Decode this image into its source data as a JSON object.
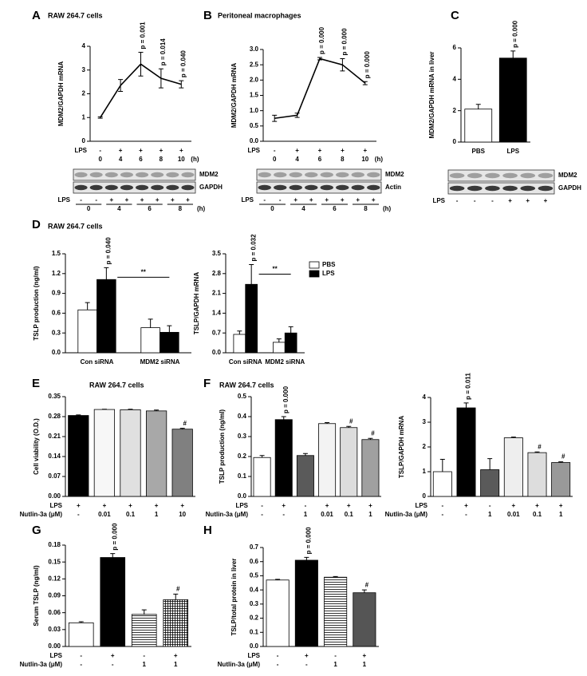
{
  "chart_data": [
    {
      "type": "line",
      "panel": "A",
      "title": "RAW 264.7 cells",
      "ylabel": "MDM2/GAPDH mRNA",
      "categories": [
        "0",
        "4",
        "6",
        "8",
        "10"
      ],
      "xunit": "(h)",
      "series": [
        {
          "color": "#000000",
          "values": [
            1.0,
            2.35,
            3.25,
            2.65,
            2.4
          ],
          "errors": [
            0.03,
            0.25,
            0.5,
            0.4,
            0.15
          ],
          "annotations": [
            null,
            null,
            "p = 0.001",
            "p = 0.014",
            "p = 0.040"
          ]
        }
      ],
      "rows": [
        {
          "label": "LPS",
          "values": [
            "-",
            "+",
            "+",
            "+",
            "+"
          ]
        }
      ],
      "ylim": [
        0,
        4
      ],
      "yticks": [
        0,
        1,
        2,
        3,
        4
      ]
    },
    {
      "type": "line",
      "panel": "B",
      "title": "Peritoneal macrophages",
      "ylabel": "MDM2/GAPDH mRNA",
      "categories": [
        "0",
        "4",
        "6",
        "8",
        "10"
      ],
      "xunit": "(h)",
      "series": [
        {
          "color": "#000000",
          "values": [
            0.75,
            0.85,
            2.7,
            2.5,
            1.9
          ],
          "errors": [
            0.1,
            0.07,
            0.04,
            0.2,
            0.05
          ],
          "annotations": [
            null,
            null,
            "p = 0.000",
            "p = 0.000",
            "p = 0.000"
          ]
        }
      ],
      "rows": [
        {
          "label": "LPS",
          "values": [
            "-",
            "+",
            "+",
            "+",
            "+"
          ]
        }
      ],
      "ylim": [
        0,
        3
      ],
      "yticks": [
        {
          "value": 0,
          "label": "0.0"
        },
        0.5,
        {
          "value": 1,
          "label": "1.0"
        },
        1.5,
        {
          "value": 2,
          "label": "2.0"
        },
        2.5,
        {
          "value": 3,
          "label": "3.0"
        }
      ]
    },
    {
      "type": "bar",
      "panel": "C",
      "ylabel": "MDM2/GAPDH mRNA in liver",
      "categories": [
        "PBS",
        "LPS"
      ],
      "series": [
        {
          "colors": [
            "#ffffff",
            "#000000"
          ],
          "values": [
            2.1,
            5.35
          ],
          "errors": [
            0.3,
            0.45
          ],
          "annotations": [
            null,
            "p = 0.000"
          ]
        }
      ],
      "ylim": [
        0,
        6
      ],
      "yticks": [
        0,
        2,
        4,
        6
      ]
    },
    {
      "type": "bar",
      "panel": "D",
      "title": "RAW 264.7 cells",
      "ylabel": "TSLP production (ng/ml)",
      "categories": [
        "Con siRNA",
        "MDM2 siRNA"
      ],
      "series": [
        {
          "name": "PBS",
          "color": "#ffffff",
          "values": [
            0.65,
            0.38
          ],
          "errors": [
            0.11,
            0.13
          ]
        },
        {
          "name": "LPS",
          "color": "#000000",
          "values": [
            1.11,
            0.31
          ],
          "errors": [
            0.18,
            0.1
          ],
          "annotations": [
            "p = 0.040",
            null
          ]
        }
      ],
      "bracket": "**",
      "ylim": [
        0,
        1.5
      ],
      "yticks": [
        {
          "value": 0,
          "label": "0.0"
        },
        0.3,
        0.6,
        0.9,
        1.2,
        1.5
      ]
    },
    {
      "type": "bar",
      "ylabel": "TSLP/GAPDH mRNA",
      "categories": [
        "Con siRNA",
        "MDM2 siRNA"
      ],
      "series": [
        {
          "name": "PBS",
          "color": "#ffffff",
          "values": [
            0.65,
            0.37
          ],
          "errors": [
            0.12,
            0.12
          ]
        },
        {
          "name": "LPS",
          "color": "#000000",
          "values": [
            2.42,
            0.7
          ],
          "errors": [
            0.7,
            0.22
          ],
          "annotations": [
            "p = 0.032",
            null
          ]
        }
      ],
      "bracket": "**",
      "legend": true,
      "ylim": [
        0,
        3.5
      ],
      "yticks": [
        {
          "value": 0,
          "label": "0.0"
        },
        0.7,
        1.4,
        2.1,
        2.8,
        3.5
      ]
    },
    {
      "type": "bar",
      "panel": "E",
      "title": "RAW 264.7 cells",
      "ylabel": "Cell viability (O.D.)",
      "series": [
        {
          "colors": [
            "#000000",
            "#f7f7f7",
            "#e0e0e0",
            "#a8a8a8",
            "#808080"
          ],
          "values": [
            0.284,
            0.305,
            0.304,
            0.3,
            0.236
          ],
          "errors": [
            0.002,
            0.001,
            0.002,
            0.003,
            0.003
          ],
          "annotations": [
            null,
            null,
            null,
            null,
            "#"
          ]
        }
      ],
      "rows": [
        {
          "label": "LPS",
          "values": [
            "+",
            "+",
            "+",
            "+",
            "+"
          ]
        },
        {
          "label": "Nutlin-3a (μM)",
          "values": [
            "-",
            "0.01",
            "0.1",
            "1",
            "10"
          ]
        }
      ],
      "ylim": [
        0,
        0.35
      ],
      "yticks": [
        {
          "value": 0,
          "label": "0.00"
        },
        0.07,
        0.14,
        0.21,
        0.28,
        0.35
      ]
    },
    {
      "type": "bar",
      "panel": "F",
      "title": "RAW 264.7 cells",
      "ylabel": "TSLP production (ng/ml)",
      "series": [
        {
          "colors": [
            "#ffffff",
            "#000000",
            "#5a5a5a",
            "#f3f3f3",
            "#dcdcdc",
            "#a0a0a0"
          ],
          "values": [
            0.195,
            0.385,
            0.205,
            0.365,
            0.345,
            0.285
          ],
          "errors": [
            0.01,
            0.015,
            0.01,
            0.005,
            0.006,
            0.006
          ],
          "annotations": [
            null,
            "p = 0.000",
            null,
            null,
            "#",
            "#"
          ]
        }
      ],
      "rows": [
        {
          "label": "LPS",
          "values": [
            "-",
            "+",
            "-",
            "+",
            "+",
            "+"
          ]
        },
        {
          "label": "Nutlin-3a (μM)",
          "values": [
            "-",
            "-",
            "1",
            "0.01",
            "0.1",
            "1"
          ]
        }
      ],
      "ylim": [
        0,
        0.5
      ],
      "yticks": [
        {
          "value": 0,
          "label": "0.0"
        },
        0.1,
        0.2,
        0.3,
        0.4,
        0.5
      ]
    },
    {
      "type": "bar",
      "ylabel": "TSLP/GAPDH mRNA",
      "series": [
        {
          "colors": [
            "#ffffff",
            "#000000",
            "#5a5a5a",
            "#eeeeee",
            "#dddddd",
            "#999999"
          ],
          "values": [
            1.0,
            3.58,
            1.08,
            2.37,
            1.77,
            1.37
          ],
          "errors": [
            0.5,
            0.2,
            0.45,
            0.03,
            0.03,
            0.03
          ],
          "annotations": [
            null,
            "p = 0.011",
            null,
            null,
            "#",
            "#"
          ]
        }
      ],
      "rows": [
        {
          "label": "LPS",
          "values": [
            "-",
            "+",
            "-",
            "+",
            "+",
            "+"
          ]
        },
        {
          "label": "Nutlin-3a (μM)",
          "values": [
            "-",
            "-",
            "1",
            "0.01",
            "0.1",
            "1"
          ]
        }
      ],
      "ylim": [
        0,
        4
      ],
      "yticks": [
        0,
        1,
        2,
        3,
        4
      ]
    },
    {
      "type": "bar",
      "panel": "G",
      "ylabel": "Serum TSLP (ng/ml)",
      "series": [
        {
          "colors": [
            "#ffffff",
            "#000000",
            "#ffffff",
            "#ffffff"
          ],
          "patterns": [
            null,
            null,
            "horizontal",
            "crosshatch"
          ],
          "values": [
            0.042,
            0.158,
            0.057,
            0.083
          ],
          "errors": [
            0.002,
            0.007,
            0.008,
            0.01
          ],
          "annotations": [
            null,
            "p = 0.000",
            null,
            "#"
          ]
        }
      ],
      "rows": [
        {
          "label": "LPS",
          "values": [
            "-",
            "+",
            "-",
            "+"
          ]
        },
        {
          "label": "Nutlin-3a (μM)",
          "values": [
            "-",
            "-",
            "1",
            "1"
          ]
        }
      ],
      "ylim": [
        0,
        0.18
      ],
      "yticks": [
        {
          "value": 0,
          "label": "0.00"
        },
        0.03,
        0.06,
        0.09,
        0.12,
        0.15,
        0.18
      ]
    },
    {
      "type": "bar",
      "panel": "H",
      "ylabel": "TSLP/total protein in liver",
      "series": [
        {
          "colors": [
            "#ffffff",
            "#000000",
            "#ffffff",
            "#555555"
          ],
          "patterns": [
            null,
            null,
            "horizontal",
            null
          ],
          "values": [
            0.47,
            0.61,
            0.49,
            0.38
          ],
          "errors": [
            0.005,
            0.02,
            0.005,
            0.02
          ],
          "annotations": [
            null,
            "p = 0.000",
            null,
            "#"
          ]
        }
      ],
      "rows": [
        {
          "label": "LPS",
          "values": [
            "-",
            "+",
            "-",
            "+"
          ]
        },
        {
          "label": "Nutlin-3a (μM)",
          "values": [
            "-",
            "-",
            "1",
            "1"
          ]
        }
      ],
      "ylim": [
        0,
        0.7
      ],
      "yticks": [
        {
          "value": 0,
          "label": "0.0"
        },
        0.1,
        0.2,
        0.3,
        0.4,
        0.5,
        0.6,
        0.7
      ]
    }
  ],
  "blots": [
    {
      "bands": [
        "MDM2",
        "GAPDH"
      ],
      "lane_label": "LPS",
      "lanes": [
        "-",
        "-",
        "+",
        "+",
        "+",
        "+",
        "+",
        "+"
      ],
      "groups": [
        "0",
        "4",
        "6",
        "8"
      ],
      "unit": "(h)"
    },
    {
      "bands": [
        "MDM2",
        "Actin"
      ],
      "lane_label": "LPS",
      "lanes": [
        "-",
        "-",
        "+",
        "+",
        "+",
        "+",
        "+",
        "+"
      ],
      "groups": [
        "0",
        "4",
        "6",
        "8"
      ],
      "unit": "(h)"
    },
    {
      "bands": [
        "MDM2",
        "GAPDH"
      ],
      "lane_label": "LPS",
      "lanes": [
        "-",
        "-",
        "-",
        "+",
        "+",
        "+"
      ]
    }
  ]
}
